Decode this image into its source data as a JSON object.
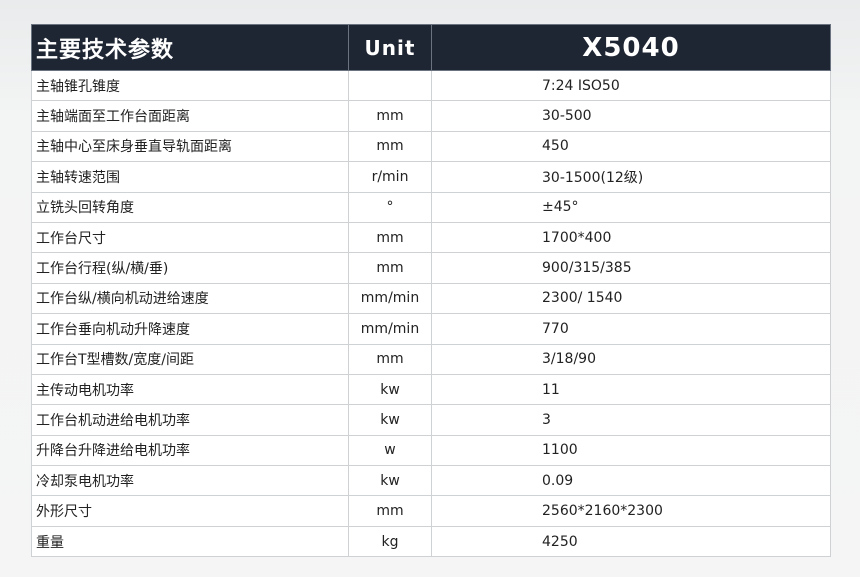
{
  "header": {
    "param": "主要技术参数",
    "unit": "Unit",
    "model": "X5040"
  },
  "rows": [
    {
      "param": "主轴锥孔锥度",
      "unit": "",
      "value": "7:24 ISO50"
    },
    {
      "param": "主轴端面至工作台面距离",
      "unit": "mm",
      "value": "30-500"
    },
    {
      "param": "主轴中心至床身垂直导轨面距离",
      "unit": "mm",
      "value": "450"
    },
    {
      "param": "主轴转速范围",
      "unit": "r/min",
      "value": "30-1500(12级)"
    },
    {
      "param": "立铣头回转角度",
      "unit": "°",
      "value": "±45°"
    },
    {
      "param": "工作台尺寸",
      "unit": "mm",
      "value": "1700*400"
    },
    {
      "param": "工作台行程(纵/横/垂)",
      "unit": "mm",
      "value": "900/315/385"
    },
    {
      "param": "工作台纵/横向机动进给速度",
      "unit": "mm/min",
      "value": "2300/ 1540"
    },
    {
      "param": "工作台垂向机动升降速度",
      "unit": "mm/min",
      "value": "770"
    },
    {
      "param": "工作台T型槽数/宽度/间距",
      "unit": "mm",
      "value": "3/18/90"
    },
    {
      "param": "主传动电机功率",
      "unit": "kw",
      "value": "11"
    },
    {
      "param": "工作台机动进给电机功率",
      "unit": "kw",
      "value": "3"
    },
    {
      "param": "升降台升降进给电机功率",
      "unit": "w",
      "value": "1100"
    },
    {
      "param": "冷却泵电机功率",
      "unit": "kw",
      "value": "0.09"
    },
    {
      "param": "外形尺寸",
      "unit": "mm",
      "value": "2560*2160*2300"
    },
    {
      "param": "重量",
      "unit": "kg",
      "value": "4250"
    }
  ]
}
